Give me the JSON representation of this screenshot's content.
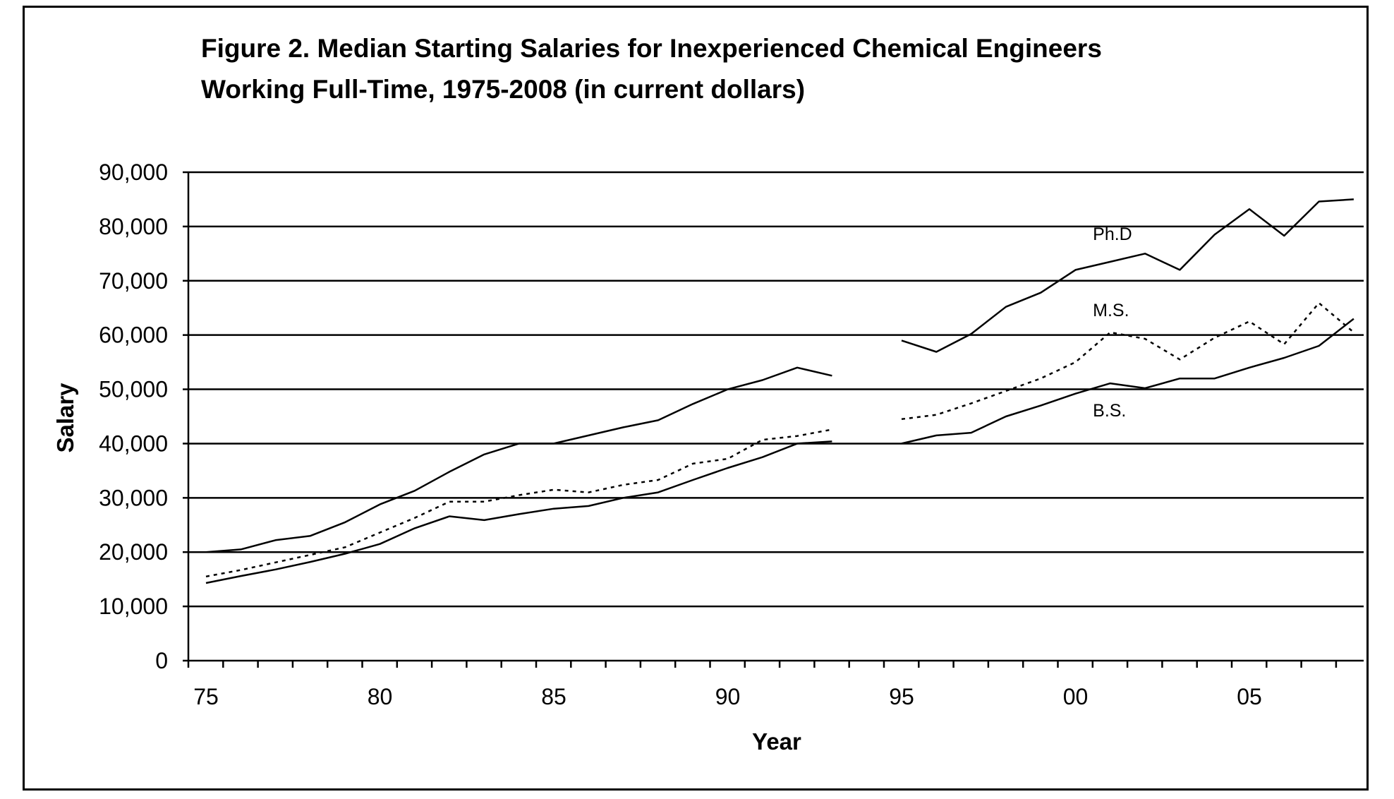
{
  "chart_data": {
    "type": "line",
    "title": [
      "Figure 2. Median Starting Salaries for Inexperienced Chemical Engineers",
      "Working Full-Time, 1975-2008 (in current dollars)"
    ],
    "xlabel": "Year",
    "ylabel": "Salary",
    "ylim": [
      0,
      90000
    ],
    "xlim": [
      1975,
      2008
    ],
    "y_ticks": [
      0,
      10000,
      20000,
      30000,
      40000,
      50000,
      60000,
      70000,
      80000,
      90000
    ],
    "y_tick_labels": [
      "0",
      "10,000",
      "20,000",
      "30,000",
      "40,000",
      "50,000",
      "60,000",
      "70,000",
      "80,000",
      "90,000"
    ],
    "x_ticks": [
      1975,
      1980,
      1985,
      1990,
      1995,
      2000,
      2005
    ],
    "x_tick_labels": [
      "75",
      "80",
      "85",
      "90",
      "95",
      "00",
      "05"
    ],
    "grid": "horizontal",
    "x": [
      1975,
      1976,
      1977,
      1978,
      1979,
      1980,
      1981,
      1982,
      1983,
      1984,
      1985,
      1986,
      1987,
      1988,
      1989,
      1990,
      1991,
      1992,
      1993,
      1994,
      1995,
      1996,
      1997,
      1998,
      1999,
      2000,
      2001,
      2002,
      2003,
      2004,
      2005,
      2006,
      2007,
      2008
    ],
    "series": [
      {
        "name": "Ph.D",
        "style": "solid",
        "color": "#000000",
        "values": [
          20000,
          20500,
          22200,
          23000,
          25500,
          28800,
          31300,
          34800,
          38000,
          40000,
          40000,
          41500,
          43000,
          44300,
          47300,
          50000,
          51700,
          54000,
          52500,
          null,
          59000,
          56900,
          60200,
          65200,
          67800,
          72000,
          73500,
          75000,
          72000,
          78500,
          83200,
          78300,
          84600,
          85000
        ]
      },
      {
        "name": "M.S.",
        "style": "dotted",
        "color": "#000000",
        "values": [
          15500,
          16700,
          18100,
          19500,
          20900,
          23600,
          26300,
          29300,
          29300,
          30500,
          31500,
          31000,
          32400,
          33300,
          36300,
          37200,
          40700,
          41400,
          42600,
          null,
          44500,
          45300,
          47400,
          49700,
          52000,
          55000,
          60500,
          59300,
          55500,
          59500,
          62500,
          58300,
          65900,
          60500
        ]
      },
      {
        "name": "B.S.",
        "style": "solid",
        "color": "#000000",
        "values": [
          14300,
          15600,
          16800,
          18200,
          19700,
          21500,
          24400,
          26600,
          25900,
          27000,
          28000,
          28500,
          30000,
          31000,
          33300,
          35500,
          37500,
          40000,
          40400,
          null,
          40000,
          41500,
          42000,
          45000,
          47000,
          49200,
          51100,
          50200,
          52000,
          52000,
          54000,
          55800,
          58000,
          63000
        ]
      }
    ]
  }
}
